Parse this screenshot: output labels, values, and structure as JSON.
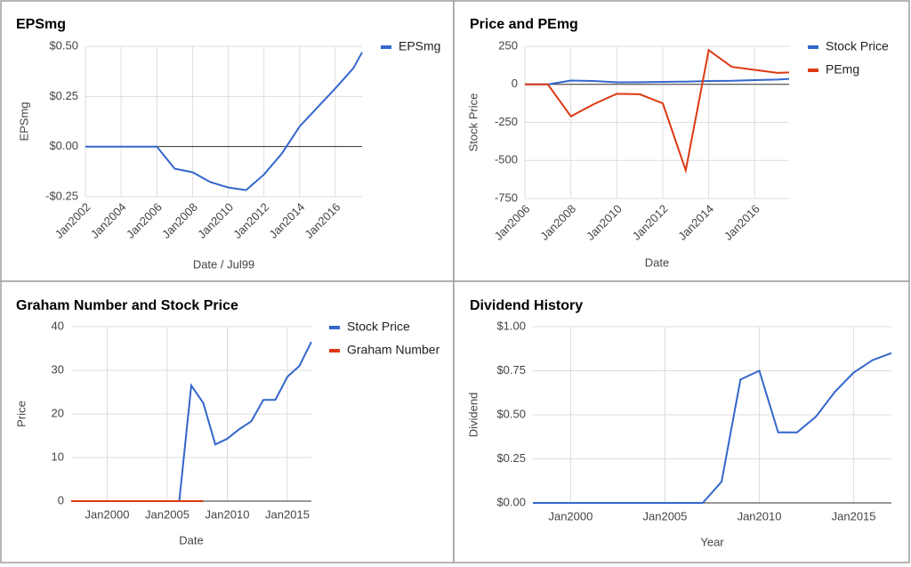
{
  "chart_data": [
    {
      "type": "line",
      "title": "EPSmg",
      "x_label": "Date / Jul99",
      "y_label": "EPSmg",
      "legend": "right",
      "grid": true,
      "x": [
        2002,
        2003,
        2004,
        2005,
        2006,
        2007,
        2008,
        2009,
        2010,
        2011,
        2012,
        2013,
        2014,
        2015,
        2016,
        2017,
        2017.5
      ],
      "series": [
        {
          "name": "EPSmg",
          "color": "#3366cc",
          "values": [
            0,
            0,
            0,
            0,
            0,
            -0.11,
            -0.128,
            -0.177,
            -0.204,
            -0.217,
            -0.14,
            -0.035,
            0.1,
            0.195,
            0.29,
            0.39,
            0.47
          ]
        }
      ],
      "xlim": [
        2002,
        2017.5
      ],
      "xticks": [
        {
          "value": 2002,
          "label": "Jan2002"
        },
        {
          "value": 2004,
          "label": "Jan2004"
        },
        {
          "value": 2006,
          "label": "Jan2006"
        },
        {
          "value": 2008,
          "label": "Jan2008"
        },
        {
          "value": 2010,
          "label": "Jan2010"
        },
        {
          "value": 2012,
          "label": "Jan2012"
        },
        {
          "value": 2014,
          "label": "Jan2014"
        },
        {
          "value": 2016,
          "label": "Jan2016"
        }
      ],
      "ylim": [
        -0.25,
        0.5
      ],
      "yticks": [
        {
          "value": 0.5,
          "label": "$0.50"
        },
        {
          "value": 0.25,
          "label": "$0.25"
        },
        {
          "value": 0,
          "label": "$0.00"
        },
        {
          "value": -0.25,
          "label": "-$0.25"
        }
      ]
    },
    {
      "type": "line",
      "title": "Price and PEmg",
      "x_label": "Date",
      "y_label": "Stock Price",
      "legend": "right",
      "grid": true,
      "x": [
        2006,
        2007,
        2008,
        2009,
        2010,
        2011,
        2012,
        2013,
        2014,
        2015,
        2016,
        2017,
        2017.5
      ],
      "series": [
        {
          "name": "Stock Price",
          "color": "#3366cc",
          "values": [
            0,
            0,
            25,
            22,
            13,
            14,
            16,
            18,
            22,
            23,
            28,
            31,
            36
          ]
        },
        {
          "name": "PEmg",
          "color": "#dc3912",
          "values": [
            0,
            0,
            -210,
            -130,
            -62,
            -65,
            -125,
            -565,
            225,
            115,
            95,
            75,
            78
          ]
        }
      ],
      "xlim": [
        2006,
        2017.5
      ],
      "xticks": [
        {
          "value": 2006,
          "label": "Jan2006"
        },
        {
          "value": 2008,
          "label": "Jan2008"
        },
        {
          "value": 2010,
          "label": "Jan2010"
        },
        {
          "value": 2012,
          "label": "Jan2012"
        },
        {
          "value": 2014,
          "label": "Jan2014"
        },
        {
          "value": 2016,
          "label": "Jan2016"
        }
      ],
      "ylim": [
        -750,
        250
      ],
      "yticks": [
        250,
        0,
        -250,
        -500,
        -750
      ]
    },
    {
      "type": "line",
      "title": "Graham Number and Stock Price",
      "x_label": "Date",
      "y_label": "Price",
      "legend": "right",
      "grid": true,
      "x": [
        1997,
        1998,
        1999,
        2000,
        2001,
        2002,
        2003,
        2004,
        2005,
        2006,
        2007,
        2008,
        2009,
        2010,
        2011,
        2012,
        2013,
        2014,
        2015,
        2016,
        2017
      ],
      "series": [
        {
          "name": "Stock Price",
          "color": "#3366cc",
          "values": [
            0,
            0,
            0,
            0,
            0,
            0,
            0,
            0,
            0,
            0,
            26.5,
            22.5,
            13,
            14.3,
            16.5,
            18.3,
            23.2,
            23.2,
            28.5,
            31,
            36.5
          ]
        },
        {
          "name": "Graham Number",
          "color": "#dc3912",
          "values": [
            0,
            0,
            0,
            0,
            0,
            0,
            0,
            0,
            0,
            0,
            0,
            0,
            null,
            null,
            null,
            null,
            null,
            null,
            null,
            null,
            null
          ]
        }
      ],
      "xlim": [
        1997,
        2017
      ],
      "xticks": [
        {
          "value": 2000,
          "label": "Jan2000"
        },
        {
          "value": 2005,
          "label": "Jan2005"
        },
        {
          "value": 2010,
          "label": "Jan2010"
        },
        {
          "value": 2015,
          "label": "Jan2015"
        }
      ],
      "ylim": [
        0,
        40
      ],
      "yticks": [
        0,
        10,
        20,
        30,
        40
      ]
    },
    {
      "type": "line",
      "title": "Dividend History",
      "x_label": "Year",
      "y_label": "Dividend",
      "grid": true,
      "x": [
        1998,
        1999,
        2000,
        2001,
        2002,
        2003,
        2004,
        2005,
        2006,
        2007,
        2008,
        2009,
        2010,
        2011,
        2012,
        2013,
        2014,
        2015,
        2016,
        2017
      ],
      "series": [
        {
          "name": null,
          "color": "#3366cc",
          "values": [
            0,
            0,
            0,
            0,
            0,
            0,
            0,
            0,
            0,
            0,
            0.12,
            0.7,
            0.75,
            0.4,
            0.4,
            0.49,
            0.63,
            0.74,
            0.81,
            0.85
          ]
        }
      ],
      "xlim": [
        1998,
        2017
      ],
      "xticks": [
        {
          "value": 2000,
          "label": "Jan2000"
        },
        {
          "value": 2005,
          "label": "Jan2005"
        },
        {
          "value": 2010,
          "label": "Jan2010"
        },
        {
          "value": 2015,
          "label": "Jan2015"
        }
      ],
      "ylim": [
        0,
        1
      ],
      "yticks": [
        {
          "value": 1,
          "label": "$1.00"
        },
        {
          "value": 0.75,
          "label": "$0.75"
        },
        {
          "value": 0.5,
          "label": "$0.50"
        },
        {
          "value": 0.25,
          "label": "$0.25"
        },
        {
          "value": 0,
          "label": "$0.00"
        }
      ]
    }
  ]
}
